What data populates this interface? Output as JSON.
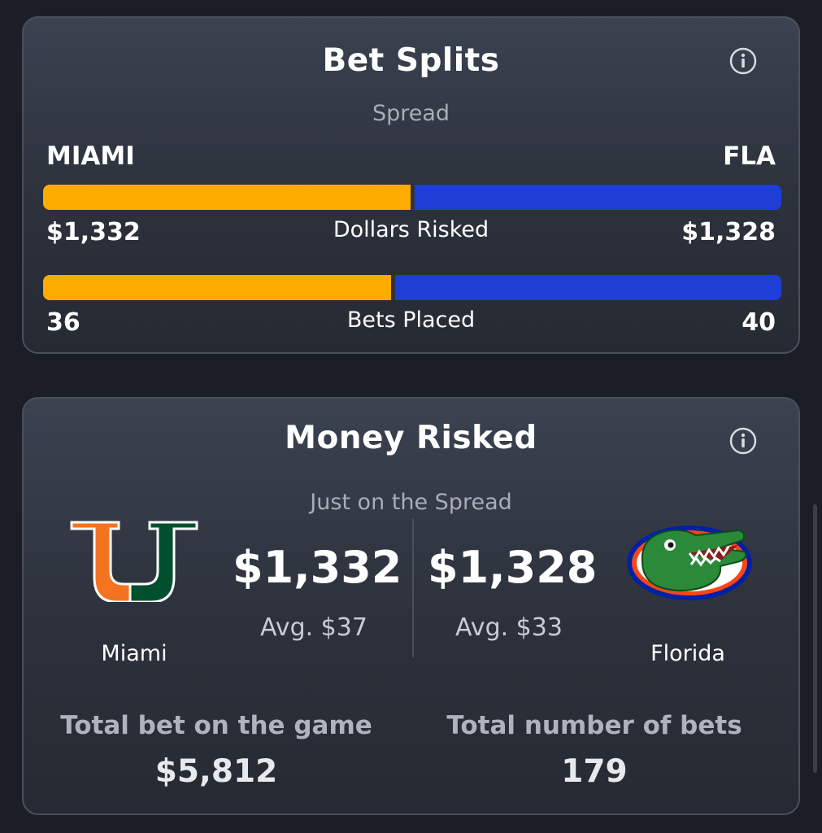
{
  "bet_splits": {
    "title": "Bet Splits",
    "subtitle": "Spread",
    "info_icon": "info-icon",
    "team_left": "MIAMI",
    "team_right": "FLA",
    "dollars": {
      "left": "$1,332",
      "right": "$1,328",
      "caption": "Dollars Risked",
      "left_share": 0.501
    },
    "bets": {
      "left": "36",
      "right": "40",
      "caption": "Bets Placed",
      "left_share": 0.474
    },
    "colors": {
      "left": "#ffab00",
      "right": "#1f3ed6"
    }
  },
  "money_risked": {
    "title": "Money Risked",
    "subtitle": "Just on the Spread",
    "info_icon": "info-icon",
    "home": {
      "name": "Miami",
      "amount": "$1,332",
      "avg": "Avg. $37",
      "logo": "miami-u-logo"
    },
    "away": {
      "name": "Florida",
      "amount": "$1,328",
      "avg": "Avg. $33",
      "logo": "florida-gator-logo"
    },
    "total_bet_label": "Total bet on the game",
    "total_bet_value": "$5,812",
    "total_count_label": "Total number of bets",
    "total_count_value": "179"
  }
}
